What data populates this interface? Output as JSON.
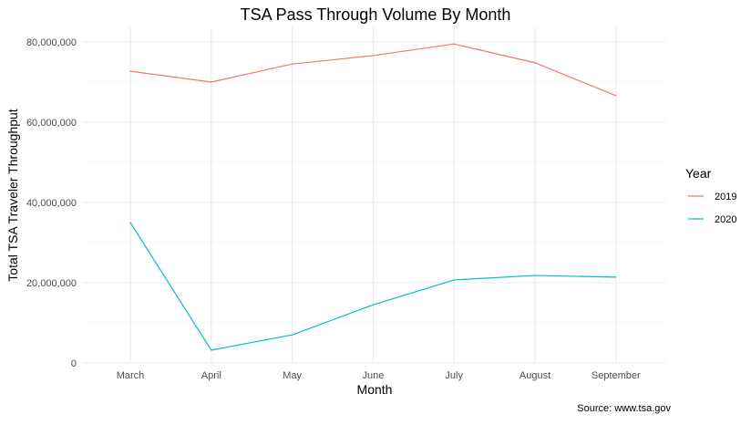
{
  "chart_data": {
    "type": "line",
    "title": "TSA Pass Through Volume By Month",
    "xlabel": "Month",
    "ylabel": "Total TSA Traveler Throughput",
    "caption": "Source: www.tsa.gov",
    "categories": [
      "March",
      "April",
      "May",
      "June",
      "July",
      "August",
      "September"
    ],
    "y_ticks": [
      0,
      20000000,
      40000000,
      60000000,
      80000000
    ],
    "y_tick_labels": [
      "0",
      "20,000,000",
      "40,000,000",
      "60,000,000",
      "80,000,000"
    ],
    "ylim": [
      0,
      80000000
    ],
    "grid": true,
    "legend": {
      "title": "Year",
      "position": "right"
    },
    "series": [
      {
        "name": "2019",
        "color": "#F8766D",
        "values": [
          72700000,
          70000000,
          74500000,
          76600000,
          79500000,
          74800000,
          66600000
        ]
      },
      {
        "name": "2020",
        "color": "#00BFC4",
        "values": [
          35000000,
          3200000,
          7000000,
          14500000,
          20700000,
          21800000,
          21400000
        ]
      }
    ]
  }
}
